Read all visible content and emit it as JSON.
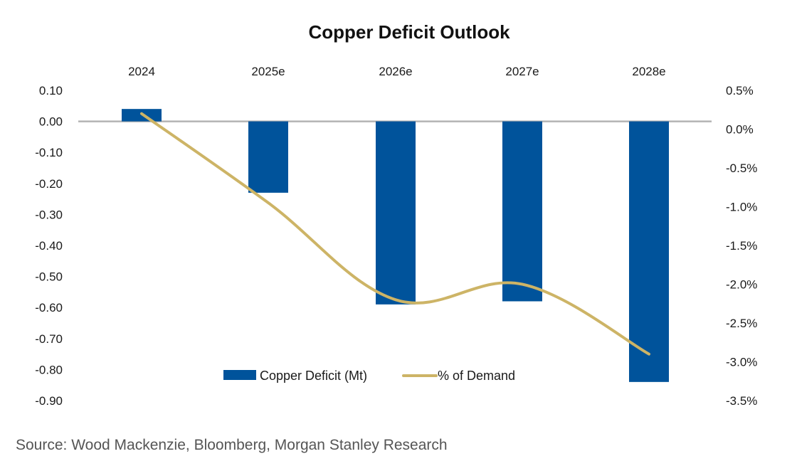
{
  "chart_data": {
    "type": "bar",
    "title": "Copper Deficit Outlook",
    "categories": [
      "2024",
      "2025e",
      "2026e",
      "2027e",
      "2028e"
    ],
    "series": [
      {
        "name": "Copper Deficit (Mt)",
        "type": "bar",
        "axis": "left",
        "color": "#00539B",
        "values": [
          0.04,
          -0.23,
          -0.59,
          -0.58,
          -0.84
        ]
      },
      {
        "name": "% of Demand",
        "type": "line",
        "axis": "right",
        "color": "#CDB466",
        "smooth": true,
        "values": [
          0.2,
          -0.95,
          -2.2,
          -2.0,
          -2.9
        ]
      }
    ],
    "left_axis": {
      "ylim": [
        -0.9,
        0.1
      ],
      "ticks": [
        "0.10",
        "0.00",
        "-0.10",
        "-0.20",
        "-0.30",
        "-0.40",
        "-0.50",
        "-0.60",
        "-0.70",
        "-0.80",
        "-0.90"
      ],
      "tick_values": [
        0.1,
        0.0,
        -0.1,
        -0.2,
        -0.3,
        -0.4,
        -0.5,
        -0.6,
        -0.7,
        -0.8,
        -0.9
      ]
    },
    "right_axis": {
      "ylim": [
        -3.5,
        0.5
      ],
      "ticks": [
        "0.5%",
        "0.0%",
        "-0.5%",
        "-1.0%",
        "-1.5%",
        "-2.0%",
        "-2.5%",
        "-3.0%",
        "-3.5%"
      ],
      "tick_values": [
        0.5,
        0.0,
        -0.5,
        -1.0,
        -1.5,
        -2.0,
        -2.5,
        -3.0,
        -3.5
      ]
    },
    "category_axis_position": "top",
    "grid": false,
    "zero_line": true,
    "legend": {
      "placement": "bottom-center",
      "entries": [
        "Copper Deficit (Mt)",
        "% of Demand"
      ]
    },
    "xlabel": "",
    "ylabel": ""
  },
  "source": "Source: Wood Mackenzie, Bloomberg, Morgan Stanley Research"
}
